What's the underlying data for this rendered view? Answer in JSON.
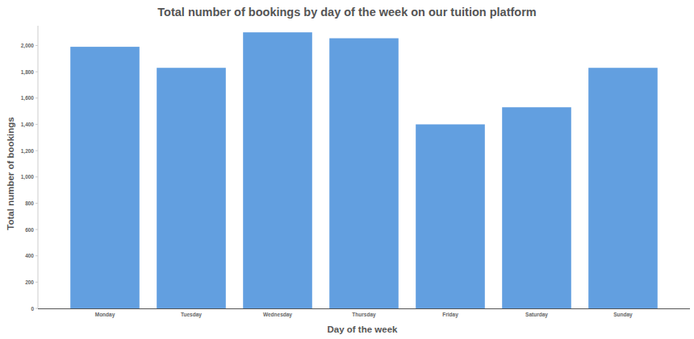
{
  "chart_data": {
    "type": "bar",
    "title": "Total number of bookings by day of the week on our tuition platform",
    "x_label": "Day of the week",
    "y_label": "Total number of bookings",
    "categories": [
      "Monday",
      "Tuesday",
      "Wednesday",
      "Thursday",
      "Friday",
      "Saturday",
      "Sunday"
    ],
    "values": [
      1990,
      1830,
      2100,
      2055,
      1400,
      1530,
      1830
    ],
    "color": "#629fe0",
    "ylim": [
      0,
      2150
    ],
    "yticks": [
      0,
      200,
      400,
      600,
      800,
      {
        "value": 1000,
        "label": "1,000"
      },
      {
        "value": 1200,
        "label": "1,200"
      },
      {
        "value": 1400,
        "label": "1,400"
      },
      {
        "value": 1600,
        "label": "1,600"
      },
      {
        "value": 1800,
        "label": "1,800"
      },
      {
        "value": 2000,
        "label": "2,000"
      }
    ],
    "grid": false
  }
}
